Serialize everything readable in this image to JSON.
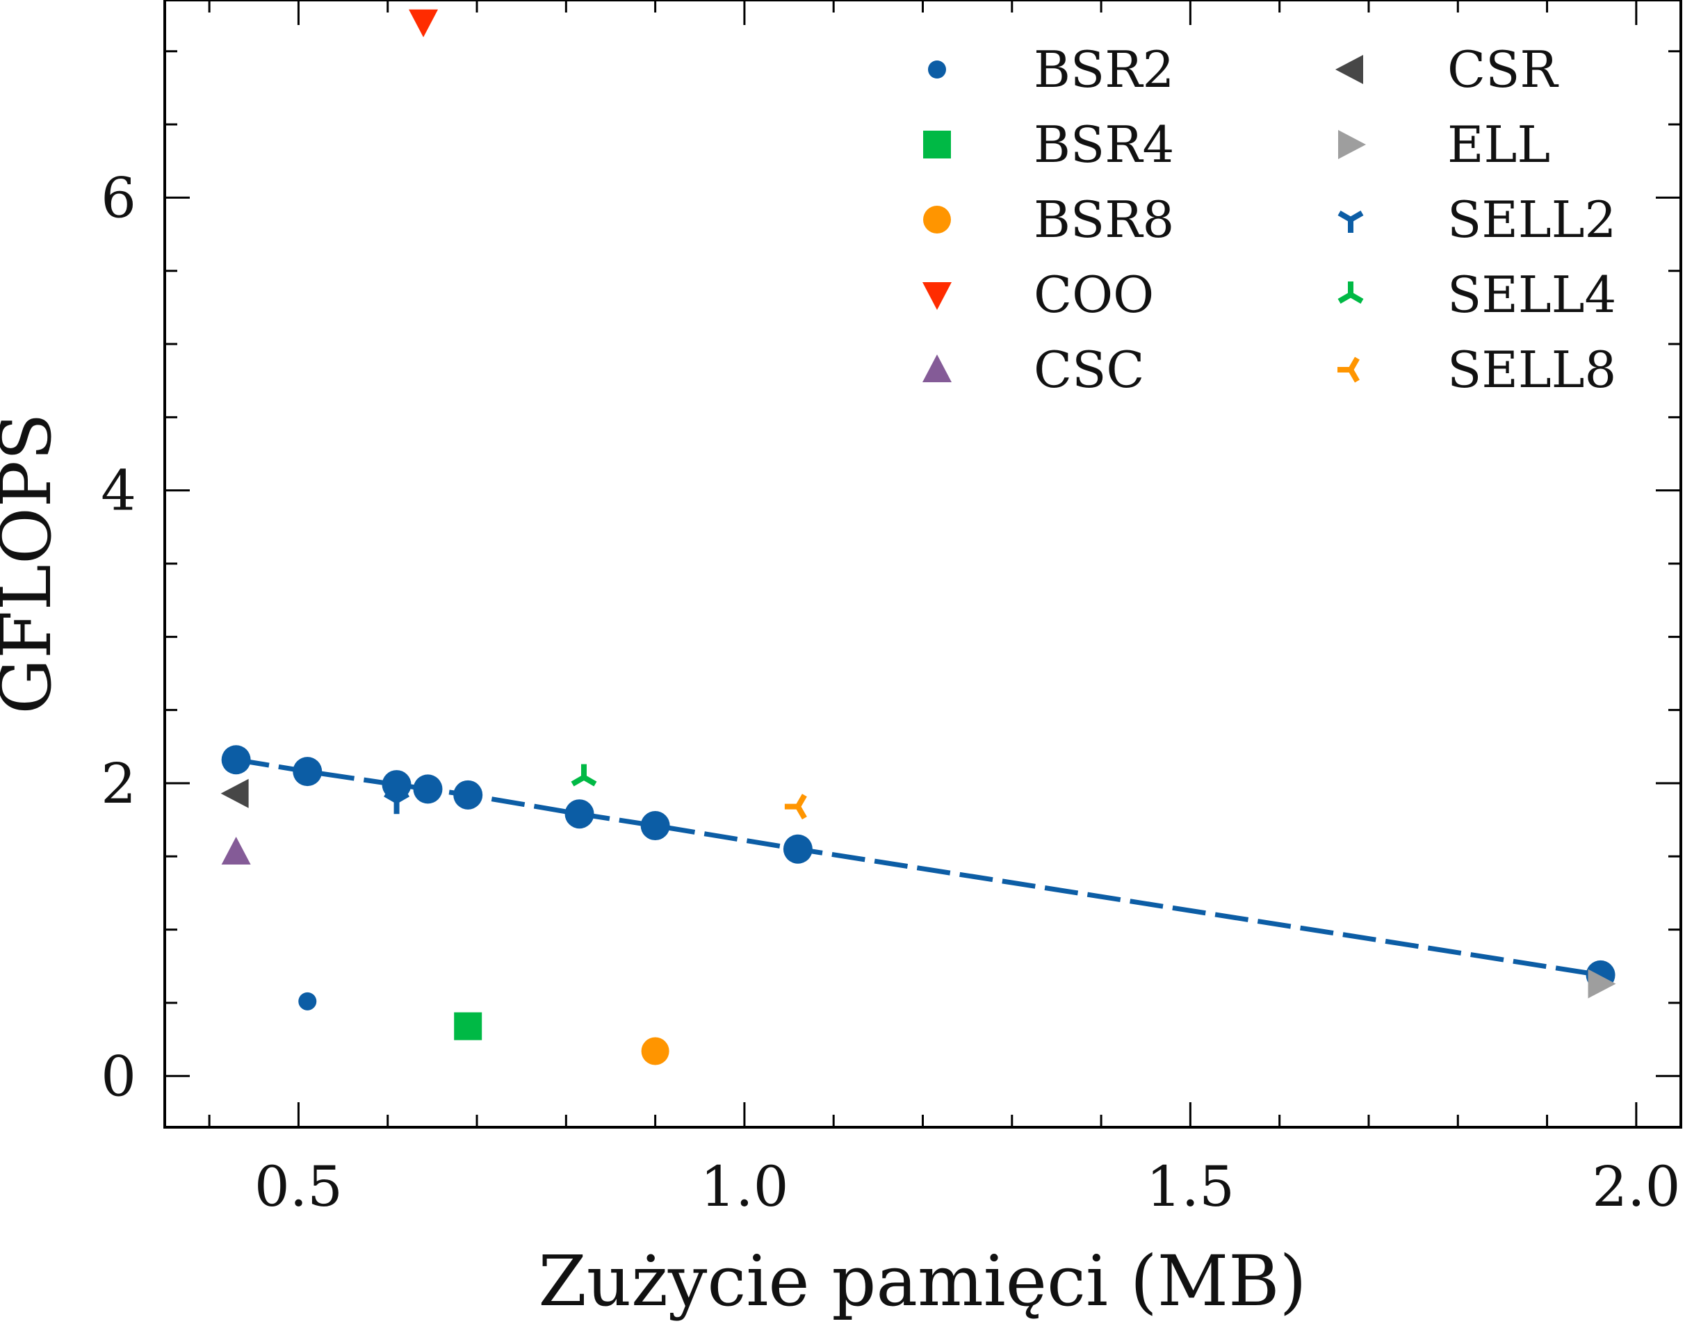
{
  "chart_data": {
    "type": "scatter",
    "title": "",
    "xlabel": "Zużycie pamięci (MB)",
    "ylabel": "GFLOPS",
    "xlim": [
      0.35,
      2.05
    ],
    "ylim": [
      -0.35,
      7.35
    ],
    "x_ticks": [
      0.5,
      1.0,
      1.5,
      2.0
    ],
    "x_tick_labels": [
      "0.5",
      "1.0",
      "1.5",
      "2.0"
    ],
    "x_minor_step": 0.1,
    "y_ticks": [
      0,
      2,
      4,
      6
    ],
    "y_tick_labels": [
      "0",
      "2",
      "4",
      "6"
    ],
    "y_minor_step": 0.5,
    "grid": false,
    "legend_placement": "top-right",
    "legend_columns": 2,
    "series": [
      {
        "name": "BSR2",
        "marker": "circle-small",
        "color": "#0C5DA5",
        "points": [
          [
            0.51,
            0.51
          ]
        ]
      },
      {
        "name": "BSR4",
        "marker": "square",
        "color": "#00B945",
        "points": [
          [
            0.69,
            0.34
          ]
        ]
      },
      {
        "name": "BSR8",
        "marker": "circle",
        "color": "#FF9500",
        "points": [
          [
            0.9,
            0.17
          ]
        ]
      },
      {
        "name": "COO",
        "marker": "triangle-down",
        "color": "#FF2C00",
        "points": [
          [
            0.64,
            7.2
          ]
        ]
      },
      {
        "name": "CSC",
        "marker": "triangle-up",
        "color": "#845B97",
        "points": [
          [
            0.43,
            1.53
          ]
        ]
      },
      {
        "name": "CSR",
        "marker": "triangle-left",
        "color": "#474747",
        "points": [
          [
            0.43,
            1.93
          ]
        ]
      },
      {
        "name": "ELL",
        "marker": "triangle-right",
        "color": "#9E9E9E",
        "points": [
          [
            1.96,
            0.63
          ]
        ]
      },
      {
        "name": "SELL2",
        "marker": "tri-down",
        "color": "#0C5DA5",
        "points": [
          [
            0.61,
            1.88
          ]
        ]
      },
      {
        "name": "SELL4",
        "marker": "tri-up",
        "color": "#00B945",
        "points": [
          [
            0.82,
            2.04
          ]
        ]
      },
      {
        "name": "SELL8",
        "marker": "tri-left",
        "color": "#FF9500",
        "points": [
          [
            1.06,
            1.84
          ]
        ]
      }
    ],
    "trend": {
      "color": "#0C5DA5",
      "style": "dashed",
      "points": [
        [
          0.43,
          2.16
        ],
        [
          0.51,
          2.08
        ],
        [
          0.61,
          1.99
        ],
        [
          0.645,
          1.96
        ],
        [
          0.69,
          1.92
        ],
        [
          0.815,
          1.79
        ],
        [
          0.9,
          1.71
        ],
        [
          1.06,
          1.55
        ],
        [
          1.96,
          0.69
        ]
      ]
    }
  }
}
